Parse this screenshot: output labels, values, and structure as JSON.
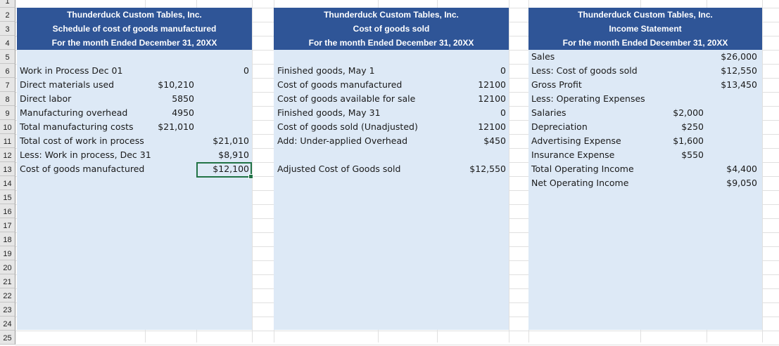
{
  "row_numbers": [
    "1",
    "2",
    "3",
    "4",
    "5",
    "6",
    "7",
    "8",
    "9",
    "10",
    "11",
    "12",
    "13",
    "14",
    "15",
    "16",
    "17",
    "18",
    "19",
    "20",
    "21",
    "22",
    "23",
    "24",
    "25"
  ],
  "cogm": {
    "company": "Thunderduck Custom Tables, Inc.",
    "title": "Schedule of cost of goods manufactured",
    "period": "For the month Ended December 31, 20XX",
    "rows": [
      {
        "label": "Work in Process Dec 01",
        "amt1": "",
        "amt2": "0"
      },
      {
        "label": "Direct materials used",
        "amt1": "$10,210",
        "amt2": ""
      },
      {
        "label": "Direct labor",
        "amt1": "5850",
        "amt2": ""
      },
      {
        "label": "Manufacturing overhead",
        "amt1": "4950",
        "amt2": ""
      },
      {
        "label": "Total manufacturing costs",
        "amt1": "$21,010",
        "amt2": ""
      },
      {
        "label": "Total cost of work in process",
        "amt1": "",
        "amt2": "$21,010"
      },
      {
        "label": "Less: Work in process, Dec 31",
        "amt1": "",
        "amt2": "$8,910"
      },
      {
        "label": "Cost of goods manufactured",
        "amt1": "",
        "amt2": "$12,100"
      }
    ]
  },
  "cogs": {
    "company": "Thunderduck Custom Tables, Inc.",
    "title": "Cost of goods sold",
    "period": "For the month Ended December 31, 20XX",
    "rows": [
      {
        "label": "Finished goods, May 1",
        "amt": "0"
      },
      {
        "label": "Cost of goods manufactured",
        "amt": "12100"
      },
      {
        "label": "Cost of goods available for sale",
        "amt": "12100"
      },
      {
        "label": "Finished goods, May 31",
        "amt": "0"
      },
      {
        "label": "Cost of goods sold (Unadjusted)",
        "amt": "12100"
      },
      {
        "label": "Add: Under-applied Overhead",
        "amt": "$450"
      },
      {
        "label": "",
        "amt": ""
      },
      {
        "label": "Adjusted Cost of Goods sold",
        "amt": "$12,550"
      }
    ]
  },
  "income": {
    "company": "Thunderduck Custom Tables, Inc.",
    "title": "Income Statement",
    "period": "For the month Ended December 31, 20XX",
    "rows": [
      {
        "label": "Sales",
        "amt1": "",
        "amt2": "$26,000"
      },
      {
        "label": "Less: Cost of goods sold",
        "amt1": "",
        "amt2": "$12,550"
      },
      {
        "label": "Gross Profit",
        "amt1": "",
        "amt2": "$13,450"
      },
      {
        "label": "Less: Operating Expenses",
        "amt1": "",
        "amt2": ""
      },
      {
        "label": "Salaries",
        "amt1": "$2,000",
        "amt2": ""
      },
      {
        "label": "Depreciation",
        "amt1": "$250",
        "amt2": ""
      },
      {
        "label": "Advertising Expense",
        "amt1": "$1,600",
        "amt2": ""
      },
      {
        "label": "Insurance Expense",
        "amt1": "$550",
        "amt2": ""
      },
      {
        "label": "Total Operating Income",
        "amt1": "",
        "amt2": "$4,400"
      },
      {
        "label": "Net Operating Income",
        "amt1": "",
        "amt2": "$9,050"
      }
    ]
  },
  "colors": {
    "header_band": "#2f5597",
    "panel_fill": "#dde9f6",
    "selection": "#217346"
  }
}
